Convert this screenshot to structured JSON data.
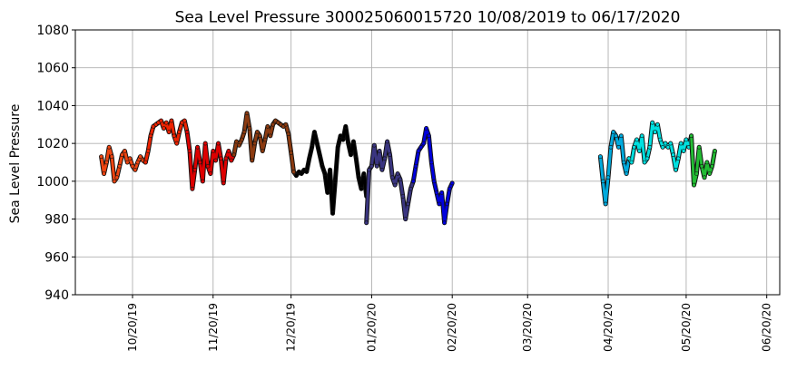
{
  "chart_data": {
    "type": "line",
    "title": "Sea Level Pressure 300025060015720  10/08/2019 to 06/17/2020",
    "xlabel": "",
    "ylabel": "Sea Level Pressure",
    "ylim": [
      940,
      1080
    ],
    "yticks": [
      940,
      960,
      980,
      1000,
      1020,
      1040,
      1060,
      1080
    ],
    "xlim": [
      "2019-09-28",
      "2020-06-25"
    ],
    "xticks": [
      {
        "date": "2019-10-20",
        "label": "10/20/19"
      },
      {
        "date": "2019-11-20",
        "label": "11/20/19"
      },
      {
        "date": "2019-12-20",
        "label": "12/20/19"
      },
      {
        "date": "2020-01-20",
        "label": "01/20/20"
      },
      {
        "date": "2020-02-20",
        "label": "02/20/20"
      },
      {
        "date": "2020-03-20",
        "label": "03/20/20"
      },
      {
        "date": "2020-04-20",
        "label": "04/20/20"
      },
      {
        "date": "2020-05-20",
        "label": "05/20/20"
      },
      {
        "date": "2020-06-20",
        "label": "06/20/20"
      }
    ],
    "grid": true,
    "series": [
      {
        "color": "#ee4411",
        "points": [
          [
            "2019-10-08",
            1013
          ],
          [
            "2019-10-09",
            1004
          ],
          [
            "2019-10-10",
            1010
          ],
          [
            "2019-10-11",
            1018
          ],
          [
            "2019-10-12",
            1013
          ],
          [
            "2019-10-13",
            1000
          ],
          [
            "2019-10-14",
            1002
          ],
          [
            "2019-10-15",
            1008
          ],
          [
            "2019-10-16",
            1014
          ],
          [
            "2019-10-17",
            1016
          ],
          [
            "2019-10-18",
            1010
          ],
          [
            "2019-10-19",
            1012
          ],
          [
            "2019-10-20",
            1008
          ],
          [
            "2019-10-21",
            1006
          ],
          [
            "2019-10-22",
            1010
          ],
          [
            "2019-10-23",
            1013
          ],
          [
            "2019-10-24",
            1011
          ],
          [
            "2019-10-25",
            1010
          ]
        ]
      },
      {
        "color": "#ee2200",
        "points": [
          [
            "2019-10-25",
            1010
          ],
          [
            "2019-10-26",
            1016
          ],
          [
            "2019-10-27",
            1024
          ],
          [
            "2019-10-28",
            1029
          ],
          [
            "2019-10-29",
            1030
          ],
          [
            "2019-10-30",
            1031
          ],
          [
            "2019-10-31",
            1032
          ],
          [
            "2019-11-01",
            1028
          ],
          [
            "2019-11-02",
            1031
          ],
          [
            "2019-11-03",
            1026
          ],
          [
            "2019-11-04",
            1032
          ],
          [
            "2019-11-05",
            1024
          ],
          [
            "2019-11-06",
            1020
          ],
          [
            "2019-11-07",
            1026
          ],
          [
            "2019-11-08",
            1031
          ],
          [
            "2019-11-09",
            1032
          ],
          [
            "2019-11-10",
            1026
          ]
        ]
      },
      {
        "color": "#dd0000",
        "points": [
          [
            "2019-11-10",
            1026
          ],
          [
            "2019-11-11",
            1016
          ],
          [
            "2019-11-12",
            996
          ],
          [
            "2019-11-13",
            1006
          ],
          [
            "2019-11-14",
            1018
          ],
          [
            "2019-11-15",
            1010
          ],
          [
            "2019-11-16",
            1000
          ],
          [
            "2019-11-17",
            1020
          ],
          [
            "2019-11-18",
            1008
          ],
          [
            "2019-11-19",
            1004
          ],
          [
            "2019-11-20",
            1016
          ],
          [
            "2019-11-21",
            1011
          ],
          [
            "2019-11-22",
            1020
          ],
          [
            "2019-11-23",
            1012
          ],
          [
            "2019-11-24",
            999
          ],
          [
            "2019-11-25",
            1012
          ],
          [
            "2019-11-26",
            1016
          ],
          [
            "2019-11-27",
            1011
          ],
          [
            "2019-11-28",
            1014
          ]
        ]
      },
      {
        "color": "#8b3a10",
        "points": [
          [
            "2019-11-28",
            1014
          ],
          [
            "2019-11-29",
            1021
          ],
          [
            "2019-11-30",
            1019
          ],
          [
            "2019-12-01",
            1022
          ],
          [
            "2019-12-02",
            1026
          ],
          [
            "2019-12-03",
            1036
          ],
          [
            "2019-12-04",
            1028
          ],
          [
            "2019-12-05",
            1011
          ],
          [
            "2019-12-06",
            1020
          ],
          [
            "2019-12-07",
            1026
          ],
          [
            "2019-12-08",
            1024
          ],
          [
            "2019-12-09",
            1016
          ],
          [
            "2019-12-10",
            1022
          ],
          [
            "2019-12-11",
            1029
          ],
          [
            "2019-12-12",
            1024
          ],
          [
            "2019-12-13",
            1030
          ],
          [
            "2019-12-14",
            1032
          ],
          [
            "2019-12-15",
            1031
          ],
          [
            "2019-12-16",
            1030
          ],
          [
            "2019-12-17",
            1029
          ],
          [
            "2019-12-18",
            1030
          ],
          [
            "2019-12-19",
            1025
          ],
          [
            "2019-12-20",
            1015
          ],
          [
            "2019-12-21",
            1005
          ],
          [
            "2019-12-22",
            1003
          ]
        ]
      },
      {
        "color": "#000000",
        "points": [
          [
            "2019-12-22",
            1003
          ],
          [
            "2019-12-23",
            1005
          ],
          [
            "2019-12-24",
            1004
          ],
          [
            "2019-12-25",
            1006
          ],
          [
            "2019-12-26",
            1005
          ],
          [
            "2019-12-27",
            1012
          ],
          [
            "2019-12-28",
            1018
          ],
          [
            "2019-12-29",
            1026
          ],
          [
            "2019-12-30",
            1020
          ],
          [
            "2019-12-31",
            1014
          ],
          [
            "2020-01-01",
            1008
          ],
          [
            "2020-01-02",
            1004
          ],
          [
            "2020-01-03",
            994
          ],
          [
            "2020-01-04",
            1006
          ],
          [
            "2020-01-05",
            983
          ],
          [
            "2020-01-06",
            1000
          ],
          [
            "2020-01-07",
            1018
          ],
          [
            "2020-01-08",
            1024
          ],
          [
            "2020-01-09",
            1022
          ],
          [
            "2020-01-10",
            1029
          ],
          [
            "2020-01-11",
            1020
          ],
          [
            "2020-01-12",
            1014
          ],
          [
            "2020-01-13",
            1021
          ],
          [
            "2020-01-14",
            1012
          ],
          [
            "2020-01-15",
            1002
          ],
          [
            "2020-01-16",
            996
          ],
          [
            "2020-01-17",
            1004
          ],
          [
            "2020-01-18",
            992
          ]
        ]
      },
      {
        "color": "#3a3580",
        "points": [
          [
            "2020-01-18",
            978
          ],
          [
            "2020-01-19",
            1006
          ],
          [
            "2020-01-20",
            1008
          ],
          [
            "2020-01-21",
            1019
          ],
          [
            "2020-01-22",
            1008
          ],
          [
            "2020-01-23",
            1016
          ],
          [
            "2020-01-24",
            1006
          ],
          [
            "2020-01-25",
            1012
          ],
          [
            "2020-01-26",
            1021
          ],
          [
            "2020-01-27",
            1014
          ],
          [
            "2020-01-28",
            1002
          ],
          [
            "2020-01-29",
            998
          ],
          [
            "2020-01-30",
            1004
          ],
          [
            "2020-01-31",
            1001
          ],
          [
            "2020-02-01",
            992
          ],
          [
            "2020-02-02",
            980
          ],
          [
            "2020-02-03",
            988
          ],
          [
            "2020-02-04",
            996
          ],
          [
            "2020-02-05",
            1000
          ]
        ]
      },
      {
        "color": "#0000dd",
        "points": [
          [
            "2020-02-05",
            1000
          ],
          [
            "2020-02-06",
            1008
          ],
          [
            "2020-02-07",
            1016
          ],
          [
            "2020-02-08",
            1018
          ],
          [
            "2020-02-09",
            1020
          ],
          [
            "2020-02-10",
            1028
          ],
          [
            "2020-02-11",
            1024
          ],
          [
            "2020-02-12",
            1010
          ],
          [
            "2020-02-13",
            1000
          ],
          [
            "2020-02-14",
            994
          ],
          [
            "2020-02-15",
            988
          ],
          [
            "2020-02-16",
            994
          ],
          [
            "2020-02-17",
            978
          ],
          [
            "2020-02-18",
            988
          ],
          [
            "2020-02-19",
            996
          ],
          [
            "2020-02-20",
            999
          ]
        ]
      },
      {
        "color": "#00aadd",
        "points": [
          [
            "2020-04-17",
            1013
          ],
          [
            "2020-04-18",
            1000
          ],
          [
            "2020-04-19",
            988
          ],
          [
            "2020-04-20",
            1002
          ],
          [
            "2020-04-21",
            1018
          ],
          [
            "2020-04-22",
            1026
          ],
          [
            "2020-04-23",
            1024
          ],
          [
            "2020-04-24",
            1018
          ],
          [
            "2020-04-25",
            1024
          ],
          [
            "2020-04-26",
            1010
          ],
          [
            "2020-04-27",
            1004
          ],
          [
            "2020-04-28",
            1012
          ]
        ]
      },
      {
        "color": "#00e0e0",
        "points": [
          [
            "2020-04-28",
            1012
          ],
          [
            "2020-04-29",
            1010
          ],
          [
            "2020-04-30",
            1018
          ],
          [
            "2020-05-01",
            1022
          ],
          [
            "2020-05-02",
            1016
          ],
          [
            "2020-05-03",
            1024
          ],
          [
            "2020-05-04",
            1010
          ],
          [
            "2020-05-05",
            1012
          ],
          [
            "2020-05-06",
            1018
          ],
          [
            "2020-05-07",
            1031
          ],
          [
            "2020-05-08",
            1026
          ],
          [
            "2020-05-09",
            1030
          ],
          [
            "2020-05-10",
            1022
          ],
          [
            "2020-05-11",
            1018
          ],
          [
            "2020-05-12",
            1020
          ],
          [
            "2020-05-13",
            1018
          ],
          [
            "2020-05-14",
            1020
          ],
          [
            "2020-05-15",
            1014
          ],
          [
            "2020-05-16",
            1006
          ],
          [
            "2020-05-17",
            1012
          ],
          [
            "2020-05-18",
            1020
          ],
          [
            "2020-05-19",
            1016
          ],
          [
            "2020-05-20",
            1022
          ],
          [
            "2020-05-21",
            1018
          ],
          [
            "2020-05-22",
            1024
          ]
        ]
      },
      {
        "color": "#22bb33",
        "points": [
          [
            "2020-05-22",
            1024
          ],
          [
            "2020-05-23",
            998
          ],
          [
            "2020-05-24",
            1004
          ],
          [
            "2020-05-25",
            1018
          ],
          [
            "2020-05-26",
            1008
          ],
          [
            "2020-05-27",
            1002
          ],
          [
            "2020-05-28",
            1010
          ],
          [
            "2020-05-29",
            1004
          ],
          [
            "2020-05-30",
            1008
          ],
          [
            "2020-05-31",
            1016
          ]
        ]
      }
    ]
  }
}
